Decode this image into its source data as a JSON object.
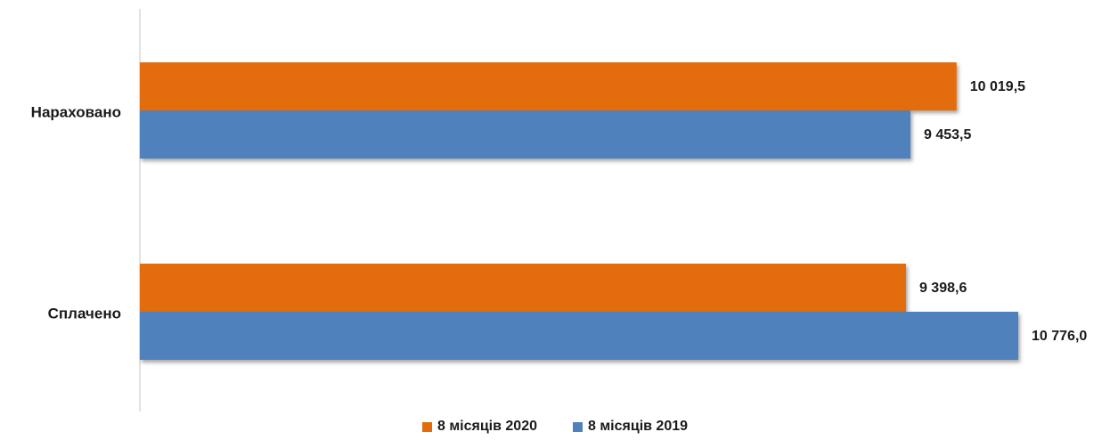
{
  "chart_data": {
    "type": "bar",
    "orientation": "horizontal",
    "categories": [
      "Нараховано",
      "Сплачено"
    ],
    "series": [
      {
        "name": "8 місяців 2020",
        "color": "#E36C0A",
        "values": [
          10019.5,
          9398.6
        ],
        "labels": [
          "10 019,5",
          "9 398,6"
        ]
      },
      {
        "name": "8 місяців 2019",
        "color": "#4F81BD",
        "values": [
          9453.5,
          10776.0
        ],
        "labels": [
          "9 453,5",
          "10 776,0"
        ]
      }
    ],
    "title": "",
    "xlabel": "",
    "ylabel": "",
    "xlim": [
      0,
      10776.0
    ],
    "grid": false,
    "legend_position": "bottom"
  }
}
